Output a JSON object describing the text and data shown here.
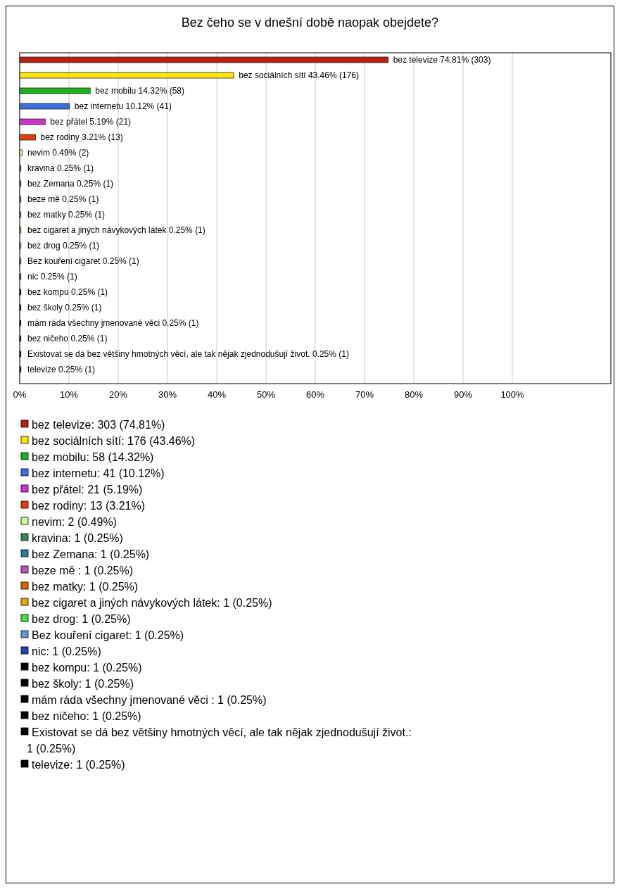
{
  "chart_data": {
    "type": "bar",
    "orientation": "horizontal",
    "title": "Bez čeho se v dnešní době naopak obejdete?",
    "categories": [
      "bez televize",
      "bez sociálních sítí",
      "bez mobilu",
      "bez internetu",
      "bez přátel",
      "bez rodiny",
      "nevim",
      "kravina",
      "bez Zemana",
      "beze mě ",
      "bez matky",
      "bez cigaret a jiných návykových látek",
      "bez drog",
      "Bez kouření cigaret",
      "nic",
      "bez kompu",
      "bez školy",
      "mám ráda všechny jmenované věci ",
      "bez ničeho",
      "Existovat se dá bez většiny hmotných věcí, ale tak nějak zjednodušují život.",
      "televize"
    ],
    "values": [
      74.81,
      43.46,
      14.32,
      10.12,
      5.19,
      3.21,
      0.49,
      0.25,
      0.25,
      0.25,
      0.25,
      0.25,
      0.25,
      0.25,
      0.25,
      0.25,
      0.25,
      0.25,
      0.25,
      0.25,
      0.25
    ],
    "value_labels": [
      "74.81% (303)",
      "43.46% (176)",
      "14.32% (58)",
      "10.12% (41)",
      "5.19% (21)",
      "3.21% (13)",
      "0.49% (2)",
      "0.25% (1)",
      "0.25% (1)",
      "0.25% (1)",
      "0.25% (1)",
      "0.25% (1)",
      "0.25% (1)",
      "0.25% (1)",
      "0.25% (1)",
      "0.25% (1)",
      "0.25% (1)",
      "0.25% (1)",
      "0.25% (1)",
      "0.25% (1)",
      "0.25% (1)"
    ],
    "colors": [
      "#b8200e",
      "#ffe600",
      "#1cb31c",
      "#3c6ee0",
      "#cc33cc",
      "#e04010",
      "#ccff99",
      "#2e8b57",
      "#2a7f8f",
      "#bb55bb",
      "#dd6600",
      "#e0a810",
      "#44dd44",
      "#6699dd",
      "#2244aa",
      "#000000",
      "#000000",
      "#000000",
      "#000000",
      "#000000",
      "#000000"
    ],
    "xlim": [
      0,
      120
    ],
    "xticks": [
      {
        "value": 0,
        "label": "0%"
      },
      {
        "value": 10,
        "label": "10%"
      },
      {
        "value": 20,
        "label": "20%"
      },
      {
        "value": 30,
        "label": "30%"
      },
      {
        "value": 40,
        "label": "40%"
      },
      {
        "value": 50,
        "label": "50%"
      },
      {
        "value": 60,
        "label": "60%"
      },
      {
        "value": 70,
        "label": "70%"
      },
      {
        "value": 80,
        "label": "80%"
      },
      {
        "value": 90,
        "label": "90%"
      },
      {
        "value": 100,
        "label": "100%"
      }
    ],
    "grid": "x",
    "annotations": [
      "bez televize: 303 (74.81%)",
      "bez sociálních sítí: 176 (43.46%)",
      "bez mobilu: 58 (14.32%)",
      "bez internetu: 41 (10.12%)",
      "bez přátel: 21 (5.19%)",
      "bez rodiny: 13 (3.21%)",
      "nevim: 2 (0.49%)",
      "kravina: 1 (0.25%)",
      "bez Zemana: 1 (0.25%)",
      "beze mě : 1 (0.25%)",
      "bez matky: 1 (0.25%)",
      "bez cigaret a jiných návykových látek: 1 (0.25%)",
      "bez drog: 1 (0.25%)",
      "Bez kouření cigaret: 1 (0.25%)",
      "nic: 1 (0.25%)",
      "bez kompu: 1 (0.25%)",
      "bez školy: 1 (0.25%)",
      "mám ráda všechny jmenované věci : 1 (0.25%)",
      "bez ničeho: 1 (0.25%)",
      "Existovat se dá bez většiny hmotných věcí, ale tak nějak zjednodušují život.: 1 (0.25%)",
      "televize: 1 (0.25%)"
    ]
  }
}
